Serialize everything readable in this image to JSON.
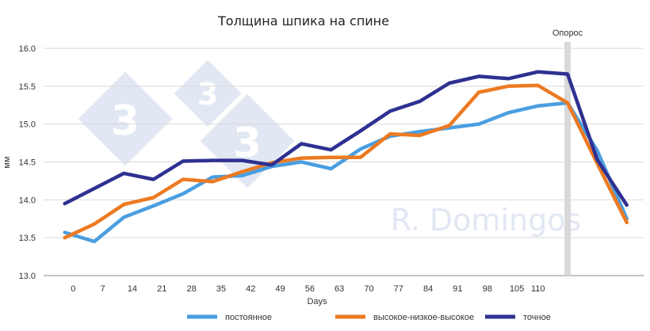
{
  "chart_data": {
    "type": "line",
    "title": "Толщина шпика на спине",
    "xlabel": "Days",
    "ylabel": "мм",
    "ylim": [
      13.0,
      16.0
    ],
    "yticks": [
      "13.0",
      "13.5",
      "14.0",
      "14.5",
      "15.0",
      "15.5",
      "16.0"
    ],
    "x_tick_labels": [
      "0",
      "7",
      "14",
      "21",
      "28",
      "35",
      "42",
      "49",
      "56",
      "63",
      "70",
      "77",
      "84",
      "91",
      "98",
      "105",
      "110"
    ],
    "grid": "horizontal",
    "legend_position": "bottom",
    "annotation": {
      "label": "Опорос",
      "x": 117
    },
    "watermark": "R. Domingos",
    "series": [
      {
        "name": "постоянное",
        "color": "#4a9ee0",
        "points": [
          [
            -2,
            13.57
          ],
          [
            5,
            13.45
          ],
          [
            12,
            13.77
          ],
          [
            19,
            13.92
          ],
          [
            26,
            14.08
          ],
          [
            33,
            14.3
          ],
          [
            40,
            14.32
          ],
          [
            47,
            14.44
          ],
          [
            54,
            14.5
          ],
          [
            61,
            14.41
          ],
          [
            68,
            14.67
          ],
          [
            75,
            14.84
          ],
          [
            82,
            14.9
          ],
          [
            89,
            14.95
          ],
          [
            96,
            15.0
          ],
          [
            103,
            15.15
          ],
          [
            110,
            15.24
          ],
          [
            117,
            15.28
          ],
          [
            124,
            14.65
          ],
          [
            131,
            13.75
          ]
        ]
      },
      {
        "name": "высокое-низкое-высокое",
        "color": "#ec7a22",
        "points": [
          [
            -2,
            13.5
          ],
          [
            5,
            13.68
          ],
          [
            12,
            13.94
          ],
          [
            19,
            14.03
          ],
          [
            26,
            14.27
          ],
          [
            33,
            14.24
          ],
          [
            40,
            14.37
          ],
          [
            47,
            14.49
          ],
          [
            54,
            14.55
          ],
          [
            61,
            14.56
          ],
          [
            68,
            14.56
          ],
          [
            75,
            14.87
          ],
          [
            82,
            14.85
          ],
          [
            89,
            14.98
          ],
          [
            96,
            15.42
          ],
          [
            103,
            15.5
          ],
          [
            110,
            15.51
          ],
          [
            117,
            15.28
          ],
          [
            124,
            14.48
          ],
          [
            131,
            13.7
          ]
        ]
      },
      {
        "name": "точное",
        "color": "#2e3191",
        "points": [
          [
            -2,
            13.95
          ],
          [
            5,
            14.15
          ],
          [
            12,
            14.35
          ],
          [
            19,
            14.27
          ],
          [
            26,
            14.51
          ],
          [
            33,
            14.52
          ],
          [
            40,
            14.52
          ],
          [
            47,
            14.46
          ],
          [
            54,
            14.74
          ],
          [
            61,
            14.66
          ],
          [
            68,
            14.91
          ],
          [
            75,
            15.17
          ],
          [
            82,
            15.3
          ],
          [
            89,
            15.54
          ],
          [
            96,
            15.63
          ],
          [
            103,
            15.6
          ],
          [
            110,
            15.69
          ],
          [
            117,
            15.66
          ],
          [
            124,
            14.53
          ],
          [
            131,
            13.93
          ]
        ]
      }
    ]
  }
}
